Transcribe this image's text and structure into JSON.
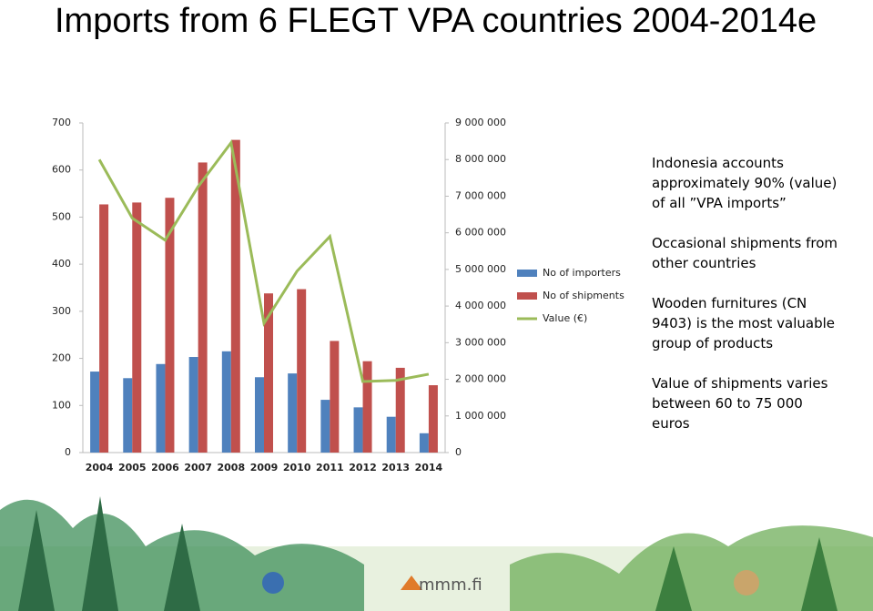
{
  "chart_data": {
    "type": "bar",
    "title": "Imports from 6 FLEGT VPA countries 2004-2014e",
    "categories": [
      "2004",
      "2005",
      "2006",
      "2007",
      "2008",
      "2009",
      "2010",
      "2011",
      "2012",
      "2013",
      "2014"
    ],
    "series": [
      {
        "name": "No of importers",
        "color": "#4f81bd",
        "type": "bar",
        "values": [
          172,
          158,
          188,
          203,
          215,
          160,
          168,
          112,
          96,
          76,
          41
        ]
      },
      {
        "name": "No of shipments",
        "color": "#c0504d",
        "type": "bar",
        "values": [
          527,
          531,
          541,
          616,
          664,
          338,
          347,
          237,
          194,
          180,
          143
        ]
      },
      {
        "name": "Value (€)",
        "color": "#9bbb59",
        "type": "line",
        "axis": "y2",
        "values": [
          8000000,
          6400000,
          5800000,
          7260000,
          8460000,
          3530000,
          4950000,
          5900000,
          1940000,
          1970000,
          2140000
        ]
      }
    ],
    "ylim": [
      0,
      700
    ],
    "yticks": [
      0,
      100,
      200,
      300,
      400,
      500,
      600,
      700
    ],
    "y2lim": [
      0,
      9000000
    ],
    "y2ticks": [
      0,
      {
        "value": 1000000,
        "label": "1 000 000"
      },
      {
        "value": 2000000,
        "label": "2 000 000"
      },
      {
        "value": 3000000,
        "label": "3 000 000"
      },
      {
        "value": 4000000,
        "label": "4 000 000"
      },
      {
        "value": 5000000,
        "label": "5 000 000"
      },
      {
        "value": 6000000,
        "label": "6 000 000"
      },
      {
        "value": 7000000,
        "label": "7 000 000"
      },
      {
        "value": 8000000,
        "label": "8 000 000"
      },
      {
        "value": 9000000,
        "label": "9 000 000"
      }
    ],
    "grid": false,
    "legend": "right"
  },
  "notes": [
    "Indonesia accounts approximately 90% (value) of all ”VPA imports”",
    "Occasional shipments from other countries",
    "Wooden furnitures (CN 9403) is the most valuable group  of products",
    "Value of shipments varies between 60 to 75 000 euros"
  ],
  "logo": "mmm.fi"
}
